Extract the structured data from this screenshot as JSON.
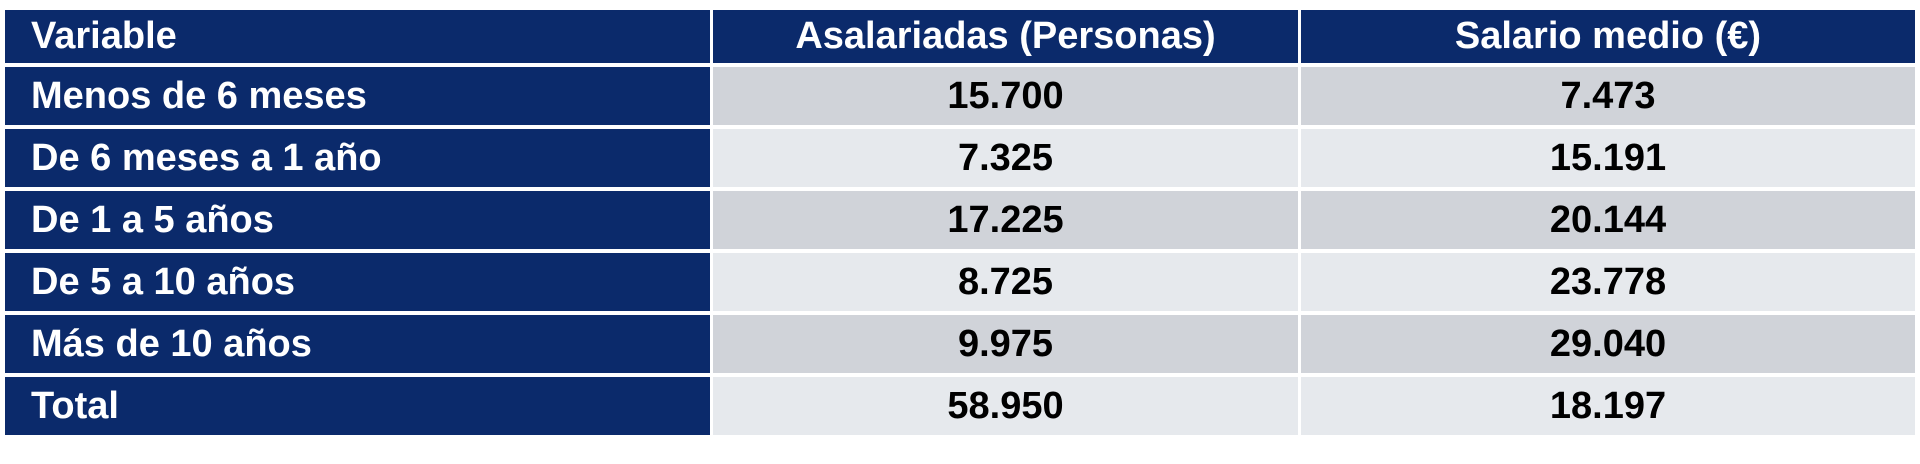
{
  "table": {
    "headers": [
      "Variable",
      "Asalariadas  (Personas)",
      "Salario medio (€)"
    ],
    "rows": [
      {
        "label": "Menos de 6 meses",
        "asalariadas": "15.700",
        "salario": "7.473"
      },
      {
        "label": "De 6 meses a 1 año",
        "asalariadas": "7.325",
        "salario": "15.191"
      },
      {
        "label": "De 1 a 5 años",
        "asalariadas": "17.225",
        "salario": "20.144"
      },
      {
        "label": "De 5 a 10 años",
        "asalariadas": "8.725",
        "salario": "23.778"
      },
      {
        "label": "Más de 10 años",
        "asalariadas": "9.975",
        "salario": "29.040"
      },
      {
        "label": "Total",
        "asalariadas": "58.950",
        "salario": "18.197"
      }
    ],
    "colors": {
      "header_bg": "#0b2a6b",
      "row_dark": "#d0d3d9",
      "row_light": "#e6e9ed"
    }
  }
}
